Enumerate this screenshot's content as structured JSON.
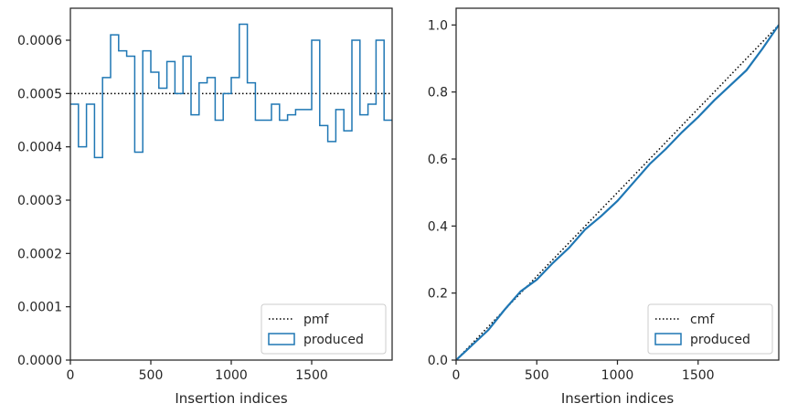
{
  "chart_data": [
    {
      "type": "histogram",
      "xlabel": "Insertion indices",
      "ylabel": "",
      "xlim": [
        0,
        2000
      ],
      "ylim": [
        0,
        0.00066
      ],
      "x_ticks": [
        0,
        500,
        1000,
        1500
      ],
      "x_tick_labels": [
        "0",
        "500",
        "1000",
        "1500"
      ],
      "y_ticks": [
        0,
        0.0001,
        0.0002,
        0.0003,
        0.0004,
        0.0005,
        0.0006
      ],
      "y_tick_labels": [
        "0.0000",
        "0.0001",
        "0.0002",
        "0.0003",
        "0.0004",
        "0.0005",
        "0.0006"
      ],
      "legend": {
        "placement": "lower-right",
        "entries": [
          "pmf",
          "produced"
        ]
      },
      "series": [
        {
          "name": "pmf",
          "style": "dotted",
          "color": "#000000",
          "x": [
            0,
            2000
          ],
          "values": [
            0.0005,
            0.0005
          ]
        },
        {
          "name": "produced",
          "style": "step",
          "color": "#1f77b4",
          "bin_edges": [
            0,
            50,
            100,
            150,
            200,
            250,
            300,
            350,
            400,
            450,
            500,
            550,
            600,
            650,
            700,
            750,
            800,
            850,
            900,
            950,
            1000,
            1050,
            1100,
            1150,
            1200,
            1250,
            1300,
            1350,
            1400,
            1450,
            1500,
            1550,
            1600,
            1650,
            1700,
            1750,
            1800,
            1850,
            1900,
            1950,
            2000
          ],
          "values": [
            0.00048,
            0.0004,
            0.00048,
            0.00038,
            0.00053,
            0.00061,
            0.00058,
            0.00057,
            0.00039,
            0.00058,
            0.00054,
            0.00051,
            0.00056,
            0.0005,
            0.00057,
            0.00046,
            0.00052,
            0.00053,
            0.00045,
            0.0005,
            0.00053,
            0.00063,
            0.00052,
            0.00045,
            0.00045,
            0.00048,
            0.00045,
            0.00046,
            0.00047,
            0.00047,
            0.0006,
            0.00044,
            0.00041,
            0.00047,
            0.00043,
            0.0006,
            0.00046,
            0.00048,
            0.0006,
            0.00045
          ]
        }
      ]
    },
    {
      "type": "line",
      "xlabel": "Insertion indices",
      "ylabel": "",
      "xlim": [
        0,
        2000
      ],
      "ylim": [
        0,
        1.05
      ],
      "x_ticks": [
        0,
        500,
        1000,
        1500
      ],
      "x_tick_labels": [
        "0",
        "500",
        "1000",
        "1500"
      ],
      "y_ticks": [
        0,
        0.2,
        0.4,
        0.6,
        0.8,
        1.0
      ],
      "y_tick_labels": [
        "0.0",
        "0.2",
        "0.4",
        "0.6",
        "0.8",
        "1.0"
      ],
      "legend": {
        "placement": "lower-right",
        "entries": [
          "cmf",
          "produced"
        ]
      },
      "series": [
        {
          "name": "cmf",
          "style": "dotted",
          "color": "#000000",
          "x": [
            0,
            2000
          ],
          "values": [
            0,
            1.0
          ]
        },
        {
          "name": "produced",
          "style": "line",
          "color": "#1f77b4",
          "x": [
            0,
            100,
            200,
            300,
            400,
            500,
            600,
            700,
            800,
            900,
            1000,
            1100,
            1200,
            1300,
            1400,
            1500,
            1600,
            1700,
            1800,
            1900,
            2000
          ],
          "values": [
            0,
            0.045,
            0.09,
            0.15,
            0.205,
            0.24,
            0.29,
            0.335,
            0.39,
            0.43,
            0.475,
            0.53,
            0.585,
            0.63,
            0.68,
            0.725,
            0.775,
            0.82,
            0.865,
            0.93,
            1.0
          ]
        }
      ]
    }
  ]
}
